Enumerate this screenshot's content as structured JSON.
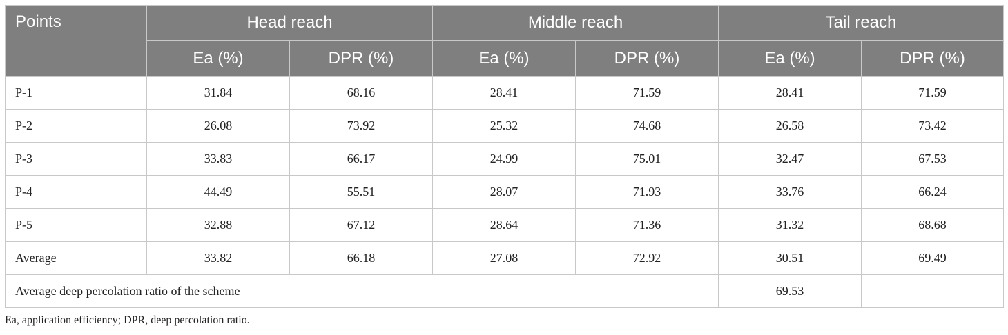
{
  "table": {
    "header": {
      "points_label": "Points",
      "groups": [
        "Head reach",
        "Middle reach",
        "Tail reach"
      ],
      "subcolumns": [
        "Ea (%)",
        "DPR (%)",
        "Ea (%)",
        "DPR (%)",
        "Ea (%)",
        "DPR (%)"
      ]
    },
    "rows": [
      {
        "label": "P-1",
        "values": [
          "31.84",
          "68.16",
          "28.41",
          "71.59",
          "28.41",
          "71.59"
        ]
      },
      {
        "label": "P-2",
        "values": [
          "26.08",
          "73.92",
          "25.32",
          "74.68",
          "26.58",
          "73.42"
        ]
      },
      {
        "label": "P-3",
        "values": [
          "33.83",
          "66.17",
          "24.99",
          "75.01",
          "32.47",
          "67.53"
        ]
      },
      {
        "label": "P-4",
        "values": [
          "44.49",
          "55.51",
          "28.07",
          "71.93",
          "33.76",
          "66.24"
        ]
      },
      {
        "label": "P-5",
        "values": [
          "32.88",
          "67.12",
          "28.64",
          "71.36",
          "31.32",
          "68.68"
        ]
      },
      {
        "label": "Average",
        "values": [
          "33.82",
          "66.18",
          "27.08",
          "72.92",
          "30.51",
          "69.49"
        ]
      }
    ],
    "summary": {
      "label": "Average deep percolation ratio of the scheme",
      "value": "69.53"
    }
  },
  "footnote": "Ea, application efficiency; DPR, deep percolation ratio."
}
